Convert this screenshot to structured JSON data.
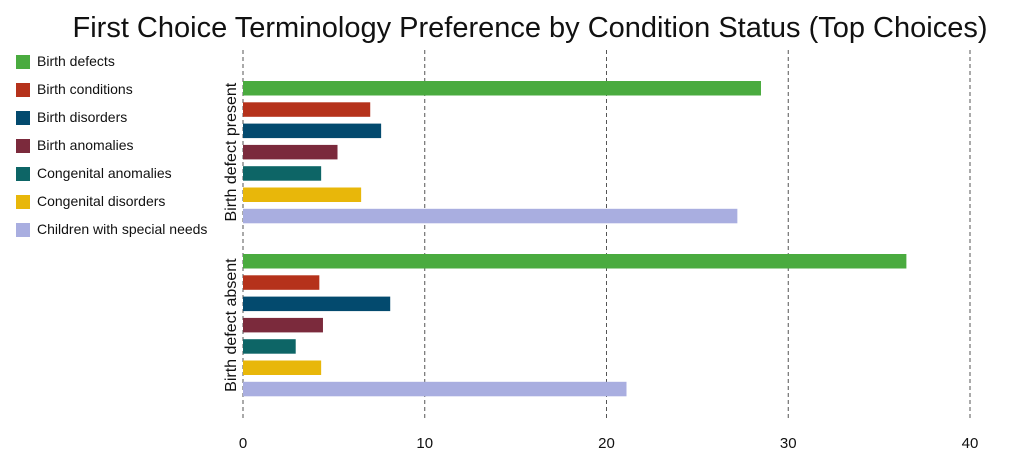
{
  "chart_data": {
    "type": "bar",
    "orientation": "horizontal",
    "title": "First Choice Terminology Preference by Condition Status (Top Choices)",
    "xlabel": "",
    "ylabel": "",
    "groups": [
      "Birth defect present",
      "Birth defect absent"
    ],
    "series": [
      {
        "name": "Birth defects",
        "color": "#4aab3f",
        "values": [
          28.5,
          36.5
        ]
      },
      {
        "name": "Birth conditions",
        "color": "#b5321b",
        "values": [
          7.0,
          4.2
        ]
      },
      {
        "name": "Birth disorders",
        "color": "#034a6e",
        "values": [
          7.6,
          8.1
        ]
      },
      {
        "name": "Birth anomalies",
        "color": "#7b2a3c",
        "values": [
          5.2,
          4.4
        ]
      },
      {
        "name": "Congenital anomalies",
        "color": "#0d6566",
        "values": [
          4.3,
          2.9
        ]
      },
      {
        "name": "Congenital disorders",
        "color": "#e8b70a",
        "values": [
          6.5,
          4.3
        ]
      },
      {
        "name": "Children with special needs",
        "color": "#a9aee0",
        "values": [
          27.2,
          21.1
        ]
      }
    ],
    "xlim": [
      0,
      40
    ],
    "xticks": [
      0,
      10,
      20,
      30,
      40
    ],
    "grid": "vertical dashed",
    "legend_position": "left"
  }
}
